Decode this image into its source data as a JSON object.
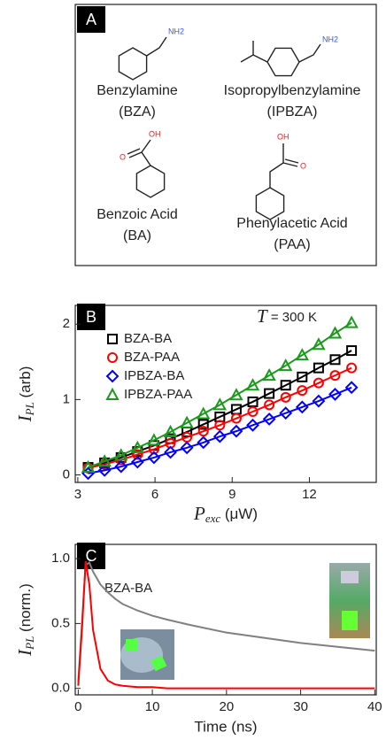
{
  "panel_a": {
    "label": "A",
    "molecules": [
      {
        "name": "Benzylamine",
        "abbr": "(BZA)",
        "groups": [
          "NH2"
        ]
      },
      {
        "name": "Isopropylbenzylamine",
        "abbr": "(IPBZA)",
        "groups": [
          "NH2"
        ]
      },
      {
        "name": "Benzoic Acid",
        "abbr": "(BA)",
        "groups": [
          "OH",
          "O"
        ]
      },
      {
        "name": "Phenylacetic Acid",
        "abbr": "(PAA)",
        "groups": [
          "OH",
          "O"
        ]
      }
    ]
  },
  "chart_data": [
    {
      "type": "scatter",
      "panel_label": "B",
      "annotation": {
        "symbol": "T",
        "text": " = 300 K"
      },
      "x_label": {
        "symbol": "P",
        "sub": "exc",
        "unit": " (μW)"
      },
      "y_label": {
        "symbol": "I",
        "sub": "PL",
        "unit": " (arb)"
      },
      "x": [
        3.4,
        4.04,
        4.68,
        5.32,
        5.96,
        6.6,
        7.24,
        7.88,
        8.52,
        9.16,
        9.8,
        10.44,
        11.08,
        11.72,
        12.36,
        13.0,
        13.64
      ],
      "series": [
        {
          "name": "BZA-BA",
          "color": "#000000",
          "marker": "square",
          "values": [
            0.1,
            0.16,
            0.23,
            0.31,
            0.39,
            0.48,
            0.57,
            0.67,
            0.77,
            0.87,
            0.97,
            1.08,
            1.19,
            1.3,
            1.42,
            1.53,
            1.65
          ]
        },
        {
          "name": "BZA-PAA",
          "color": "#ff0000",
          "marker": "circle",
          "values": [
            0.09,
            0.14,
            0.2,
            0.27,
            0.34,
            0.42,
            0.5,
            0.58,
            0.66,
            0.75,
            0.84,
            0.93,
            1.03,
            1.12,
            1.22,
            1.32,
            1.42
          ]
        },
        {
          "name": "IPBZA-BA",
          "color": "#0000ff",
          "marker": "diamond",
          "values": [
            0.02,
            0.06,
            0.11,
            0.17,
            0.23,
            0.3,
            0.36,
            0.43,
            0.51,
            0.58,
            0.66,
            0.74,
            0.82,
            0.9,
            0.98,
            1.07,
            1.16
          ]
        },
        {
          "name": "IPBZA-PAA",
          "color": "#1a9a1a",
          "marker": "triangle",
          "values": [
            0.1,
            0.18,
            0.26,
            0.36,
            0.46,
            0.57,
            0.69,
            0.81,
            0.93,
            1.06,
            1.19,
            1.32,
            1.45,
            1.59,
            1.73,
            1.88,
            2.02
          ]
        }
      ],
      "xlim": [
        2.9,
        14.6
      ],
      "ylim": [
        -0.1,
        2.25
      ],
      "xticks": [
        3,
        6,
        9,
        12
      ],
      "yticks": [
        0,
        1,
        2
      ],
      "legend": "upper left"
    },
    {
      "type": "line",
      "panel_label": "C",
      "annotation": {
        "text": "BZA-BA"
      },
      "x_label": "Time (ns)",
      "y_label": {
        "symbol": "I",
        "sub": "PL",
        "unit": " (norm.)"
      },
      "x": [
        0,
        0.5,
        1,
        1.5,
        2,
        3,
        4,
        5,
        6,
        8,
        10,
        12,
        15,
        20,
        25,
        30,
        35,
        40
      ],
      "series": [
        {
          "color": "#808080",
          "values": [
            0.05,
            0.5,
            0.95,
            0.97,
            0.9,
            0.8,
            0.74,
            0.69,
            0.65,
            0.6,
            0.56,
            0.53,
            0.49,
            0.43,
            0.39,
            0.35,
            0.32,
            0.29
          ]
        },
        {
          "color": "#ff0000",
          "values": [
            0.02,
            0.45,
            0.98,
            0.8,
            0.45,
            0.15,
            0.06,
            0.03,
            0.02,
            0.01,
            0.01,
            0,
            0,
            0,
            0,
            0,
            0,
            0
          ]
        }
      ],
      "xlim": [
        -0.4,
        40.2
      ],
      "ylim": [
        -0.05,
        1.11
      ],
      "xticks": [
        0,
        10,
        20,
        30,
        40
      ],
      "yticks": [
        {
          "value": 0,
          "label": "0.0"
        },
        {
          "value": 0.5,
          "label": "0.5"
        },
        {
          "value": 1,
          "label": "1.0"
        }
      ]
    }
  ]
}
